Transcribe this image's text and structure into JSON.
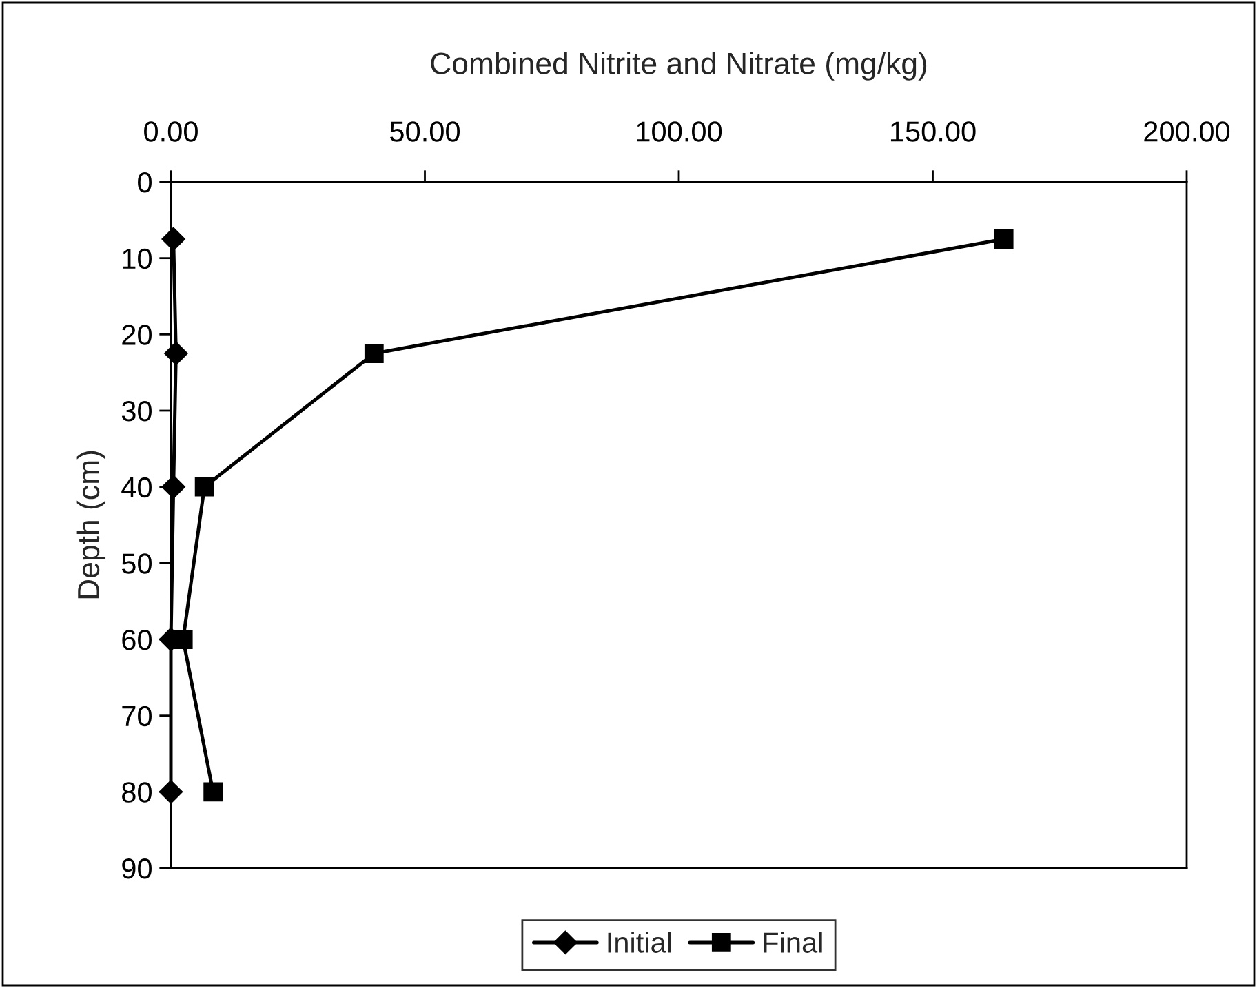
{
  "chart_data": {
    "type": "line",
    "title": "Combined Nitrite and Nitrate (mg/kg)",
    "ylabel": "Depth (cm)",
    "orientation": "horizontal",
    "x": [
      7.5,
      22.5,
      40,
      60,
      80
    ],
    "series": [
      {
        "name": "Initial",
        "color": "#000000",
        "marker": "diamond",
        "values": [
          0.5,
          1,
          0.5,
          0,
          0
        ]
      },
      {
        "name": "Final",
        "color": "#000000",
        "marker": "square",
        "values": [
          164,
          40,
          6.6,
          2.4,
          8.3
        ]
      }
    ],
    "xlim": [
      0,
      200
    ],
    "xticks": [
      {
        "value": 0,
        "label": "0.00"
      },
      {
        "value": 50,
        "label": "50.00"
      },
      {
        "value": 100,
        "label": "100.00"
      },
      {
        "value": 150,
        "label": "150.00"
      },
      {
        "value": 200,
        "label": "200.00"
      }
    ],
    "ylim": [
      90,
      0
    ],
    "yticks": [
      0,
      10,
      20,
      30,
      40,
      50,
      60,
      70,
      80,
      90
    ],
    "grid": false,
    "legend": "bottom",
    "line_style": "solid"
  }
}
